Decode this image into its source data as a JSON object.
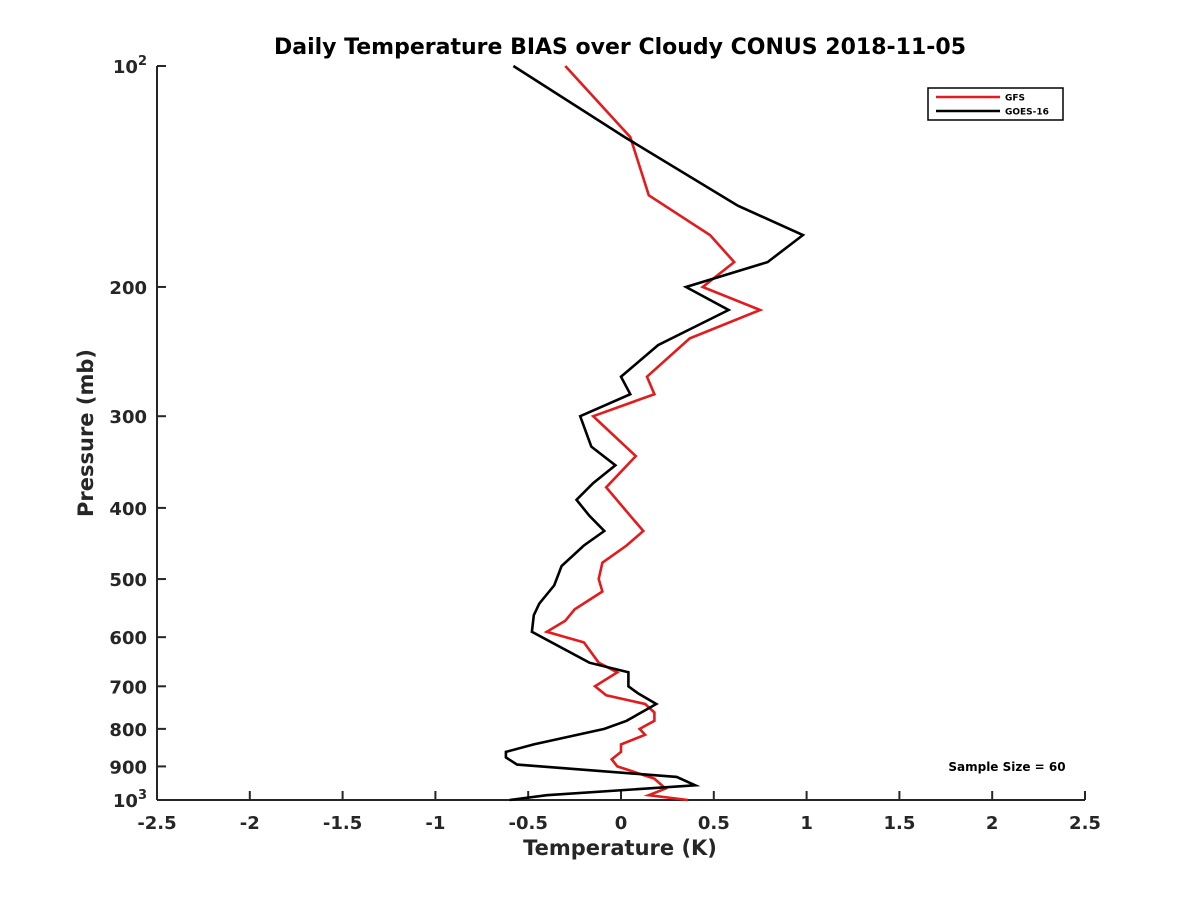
{
  "chart_data": {
    "type": "line",
    "title": "Daily Temperature BIAS over Cloudy CONUS 2018-11-05",
    "xlabel": "Temperature (K)",
    "ylabel": "Pressure (mb)",
    "xlim": [
      -2.5,
      2.5
    ],
    "ylim": [
      100,
      1000
    ],
    "y_scale": "log",
    "y_reversed": true,
    "grid": false,
    "legend_position": "top-right",
    "x_ticks": [
      {
        "value": -2.5,
        "label": "-2.5"
      },
      {
        "value": -2,
        "label": "-2"
      },
      {
        "value": -1.5,
        "label": "-1.5"
      },
      {
        "value": -1,
        "label": "-1"
      },
      {
        "value": -0.5,
        "label": "-0.5"
      },
      {
        "value": 0,
        "label": "0"
      },
      {
        "value": 0.5,
        "label": "0.5"
      },
      {
        "value": 1,
        "label": "1"
      },
      {
        "value": 1.5,
        "label": "1.5"
      },
      {
        "value": 2,
        "label": "2"
      },
      {
        "value": 2.5,
        "label": "2.5"
      }
    ],
    "y_ticks": [
      {
        "value": 100,
        "base": "10",
        "exp": "2"
      },
      {
        "value": 200,
        "label": "200"
      },
      {
        "value": 300,
        "label": "300"
      },
      {
        "value": 400,
        "label": "400"
      },
      {
        "value": 500,
        "label": "500"
      },
      {
        "value": 600,
        "label": "600"
      },
      {
        "value": 700,
        "label": "700"
      },
      {
        "value": 800,
        "label": "800"
      },
      {
        "value": 900,
        "label": "900"
      },
      {
        "value": 1000,
        "base": "10",
        "exp": "3"
      }
    ],
    "series": [
      {
        "name": "GFS",
        "color": "#e41a1c",
        "points": [
          [
            -0.3,
            100
          ],
          [
            0.05,
            125
          ],
          [
            0.15,
            150
          ],
          [
            0.48,
            170
          ],
          [
            0.61,
            185
          ],
          [
            0.44,
            200
          ],
          [
            0.75,
            215
          ],
          [
            0.37,
            235
          ],
          [
            0.14,
            265
          ],
          [
            0.18,
            280
          ],
          [
            -0.15,
            300
          ],
          [
            0.08,
            340
          ],
          [
            -0.08,
            375
          ],
          [
            0.05,
            410
          ],
          [
            0.12,
            430
          ],
          [
            0.03,
            450
          ],
          [
            -0.1,
            475
          ],
          [
            -0.12,
            500
          ],
          [
            -0.1,
            520
          ],
          [
            -0.25,
            550
          ],
          [
            -0.3,
            570
          ],
          [
            -0.4,
            590
          ],
          [
            -0.2,
            610
          ],
          [
            -0.12,
            650
          ],
          [
            -0.02,
            670
          ],
          [
            -0.14,
            700
          ],
          [
            -0.08,
            720
          ],
          [
            0.13,
            740
          ],
          [
            0.18,
            760
          ],
          [
            0.18,
            780
          ],
          [
            0.1,
            800
          ],
          [
            0.13,
            815
          ],
          [
            0.0,
            840
          ],
          [
            0.0,
            860
          ],
          [
            -0.05,
            880
          ],
          [
            -0.02,
            900
          ],
          [
            0.18,
            935
          ],
          [
            0.24,
            965
          ],
          [
            0.15,
            985
          ],
          [
            0.36,
            1000
          ]
        ]
      },
      {
        "name": "GOES-16",
        "color": "#000000",
        "points": [
          [
            -0.58,
            100
          ],
          [
            0.02,
            125
          ],
          [
            0.63,
            155
          ],
          [
            0.98,
            170
          ],
          [
            0.79,
            185
          ],
          [
            0.35,
            200
          ],
          [
            0.58,
            215
          ],
          [
            0.2,
            240
          ],
          [
            0.0,
            265
          ],
          [
            0.05,
            280
          ],
          [
            -0.22,
            300
          ],
          [
            -0.16,
            330
          ],
          [
            -0.03,
            350
          ],
          [
            -0.15,
            370
          ],
          [
            -0.24,
            390
          ],
          [
            -0.17,
            410
          ],
          [
            -0.09,
            430
          ],
          [
            -0.2,
            450
          ],
          [
            -0.32,
            480
          ],
          [
            -0.36,
            510
          ],
          [
            -0.44,
            540
          ],
          [
            -0.47,
            560
          ],
          [
            -0.48,
            590
          ],
          [
            -0.17,
            650
          ],
          [
            0.04,
            670
          ],
          [
            0.04,
            700
          ],
          [
            0.09,
            715
          ],
          [
            0.19,
            740
          ],
          [
            0.03,
            780
          ],
          [
            -0.09,
            800
          ],
          [
            -0.47,
            840
          ],
          [
            -0.62,
            860
          ],
          [
            -0.62,
            875
          ],
          [
            -0.56,
            895
          ],
          [
            0.3,
            930
          ],
          [
            0.4,
            955
          ],
          [
            -0.4,
            985
          ],
          [
            -0.6,
            1000
          ]
        ]
      }
    ],
    "annotation": "Sample Size = 60"
  }
}
